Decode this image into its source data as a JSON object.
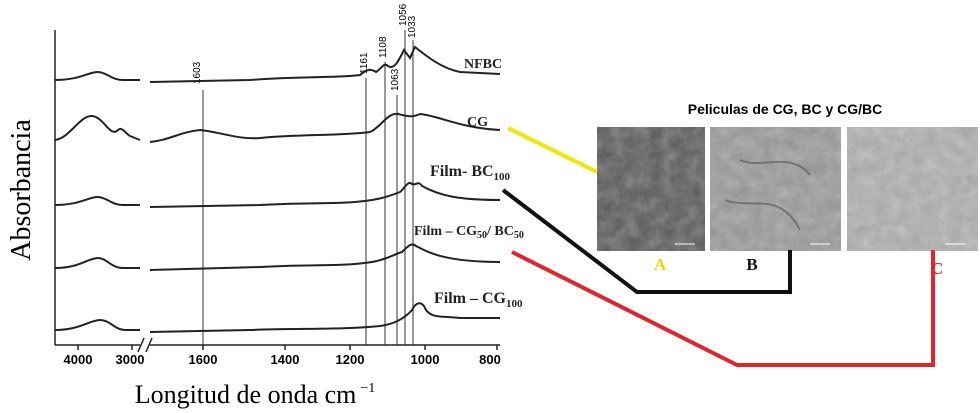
{
  "y_axis_label": "Absorbancia",
  "x_axis_label": {
    "text": "Longitud de onda cm",
    "sup": "−1"
  },
  "x_ticks": [
    "4000",
    "3000",
    "1600",
    "1400",
    "1200",
    "1000",
    "800"
  ],
  "peak_labels": [
    "1603",
    "1161",
    "1108",
    "1063",
    "1056",
    "1033"
  ],
  "series_labels": [
    {
      "text": "NFBC"
    },
    {
      "text": "CG"
    },
    {
      "text": "Film- BC",
      "sub": "100"
    },
    {
      "text": "Film – CG",
      "sub": "50",
      "text2": "/ BC",
      "sub2": "50"
    },
    {
      "text": "Film – CG",
      "sub": "100"
    }
  ],
  "panel_title": "Peliculas de CG, BC y CG/BC",
  "image_labels": [
    "A",
    "B",
    "C"
  ]
}
